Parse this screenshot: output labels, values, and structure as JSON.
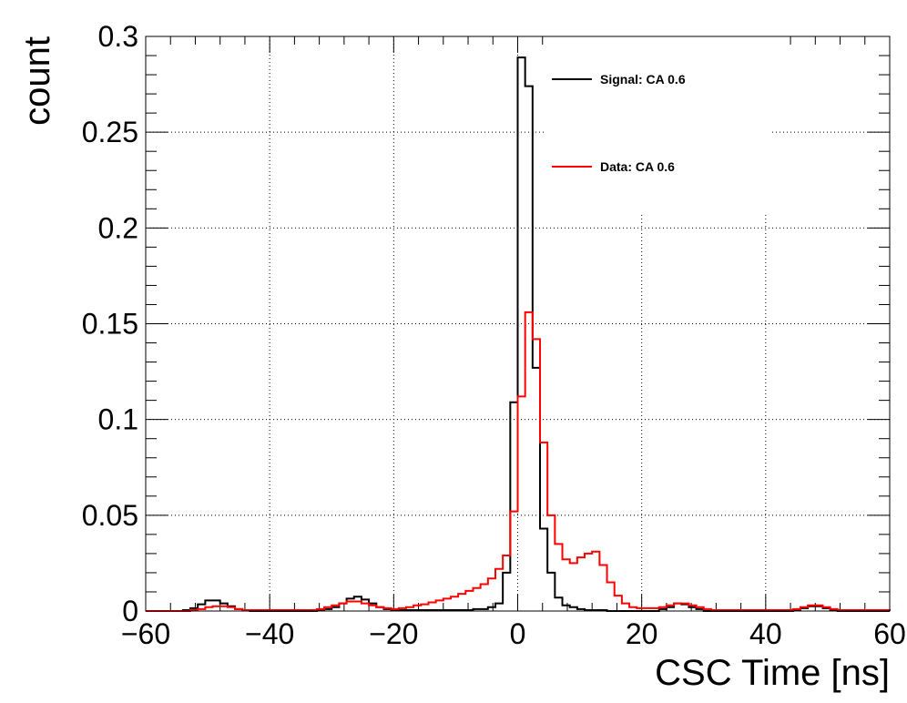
{
  "chart_data": {
    "type": "line",
    "title": "",
    "xlabel": "CSC Time [ns]",
    "ylabel": "count",
    "xlim": [
      -60,
      60
    ],
    "ylim": [
      0,
      0.3
    ],
    "x_ticks": [
      -60,
      -40,
      -20,
      0,
      20,
      40,
      60
    ],
    "x_tick_labels": [
      "−60",
      "−40",
      "−20",
      "0",
      "20",
      "40",
      "60"
    ],
    "y_ticks": [
      0,
      0.05,
      0.1,
      0.15,
      0.2,
      0.25,
      0.3
    ],
    "y_tick_labels": [
      "0",
      "0.05",
      "0.1",
      "0.15",
      "0.2",
      "0.25",
      "0.3"
    ],
    "grid": true,
    "legend_position": "top-right",
    "bin_width": 1.2,
    "bin_edges_start": -60,
    "series": [
      {
        "name": "Signal: CA 0.6",
        "color": "#000000",
        "values": [
          0,
          0,
          0,
          0,
          0,
          0.0005,
          0.0015,
          0.0035,
          0.0055,
          0.0055,
          0.004,
          0.0025,
          0.001,
          0.0005,
          0,
          0,
          0,
          0,
          0,
          0,
          0,
          0,
          0,
          0.0005,
          0.001,
          0.002,
          0.004,
          0.0065,
          0.0075,
          0.006,
          0.004,
          0.002,
          0.001,
          0.0005,
          0.0005,
          0.0005,
          0.0005,
          0.0005,
          0.0005,
          0.0005,
          0.0005,
          0.0005,
          0.0005,
          0.0005,
          0.001,
          0.001,
          0.002,
          0.004,
          0.02,
          0.109,
          0.289,
          0.274,
          0.127,
          0.043,
          0.02,
          0.007,
          0.003,
          0.002,
          0.001,
          0.0005,
          0.0005,
          0.0005,
          0,
          0,
          0,
          0,
          0,
          0,
          0,
          0.001,
          0.002,
          0.004,
          0.0035,
          0.002,
          0.001,
          0,
          0,
          0,
          0,
          0,
          0,
          0,
          0,
          0,
          0,
          0,
          0,
          0.0005,
          0.0015,
          0.0025,
          0.0025,
          0.0015,
          0.0005,
          0,
          0,
          0,
          0,
          0,
          0,
          0
        ]
      },
      {
        "name": "Data: CA 0.6",
        "color": "#ff0000",
        "values": [
          0,
          0,
          0,
          0,
          0,
          0,
          0.0005,
          0.001,
          0.002,
          0.0025,
          0.0025,
          0.002,
          0.001,
          0.0005,
          0.0005,
          0.0005,
          0.0005,
          0.0005,
          0.0005,
          0.0005,
          0.0005,
          0.0005,
          0.0005,
          0.001,
          0.002,
          0.003,
          0.004,
          0.005,
          0.005,
          0.004,
          0.003,
          0.002,
          0.0015,
          0.001,
          0.0015,
          0.002,
          0.003,
          0.0035,
          0.0045,
          0.0055,
          0.0065,
          0.0075,
          0.009,
          0.0105,
          0.012,
          0.014,
          0.017,
          0.022,
          0.029,
          0.052,
          0.112,
          0.156,
          0.142,
          0.088,
          0.05,
          0.035,
          0.027,
          0.025,
          0.028,
          0.03,
          0.031,
          0.024,
          0.015,
          0.008,
          0.004,
          0.002,
          0.0015,
          0.0015,
          0.0015,
          0.002,
          0.003,
          0.004,
          0.004,
          0.003,
          0.002,
          0.001,
          0.0005,
          0.0005,
          0.0005,
          0.0005,
          0.0005,
          0.0005,
          0.0005,
          0.0005,
          0.0005,
          0.0005,
          0.0005,
          0.001,
          0.002,
          0.003,
          0.003,
          0.002,
          0.001,
          0.0005,
          0.0005,
          0.0005,
          0.0005,
          0.0005,
          0.0005,
          0.0005
        ]
      }
    ]
  }
}
